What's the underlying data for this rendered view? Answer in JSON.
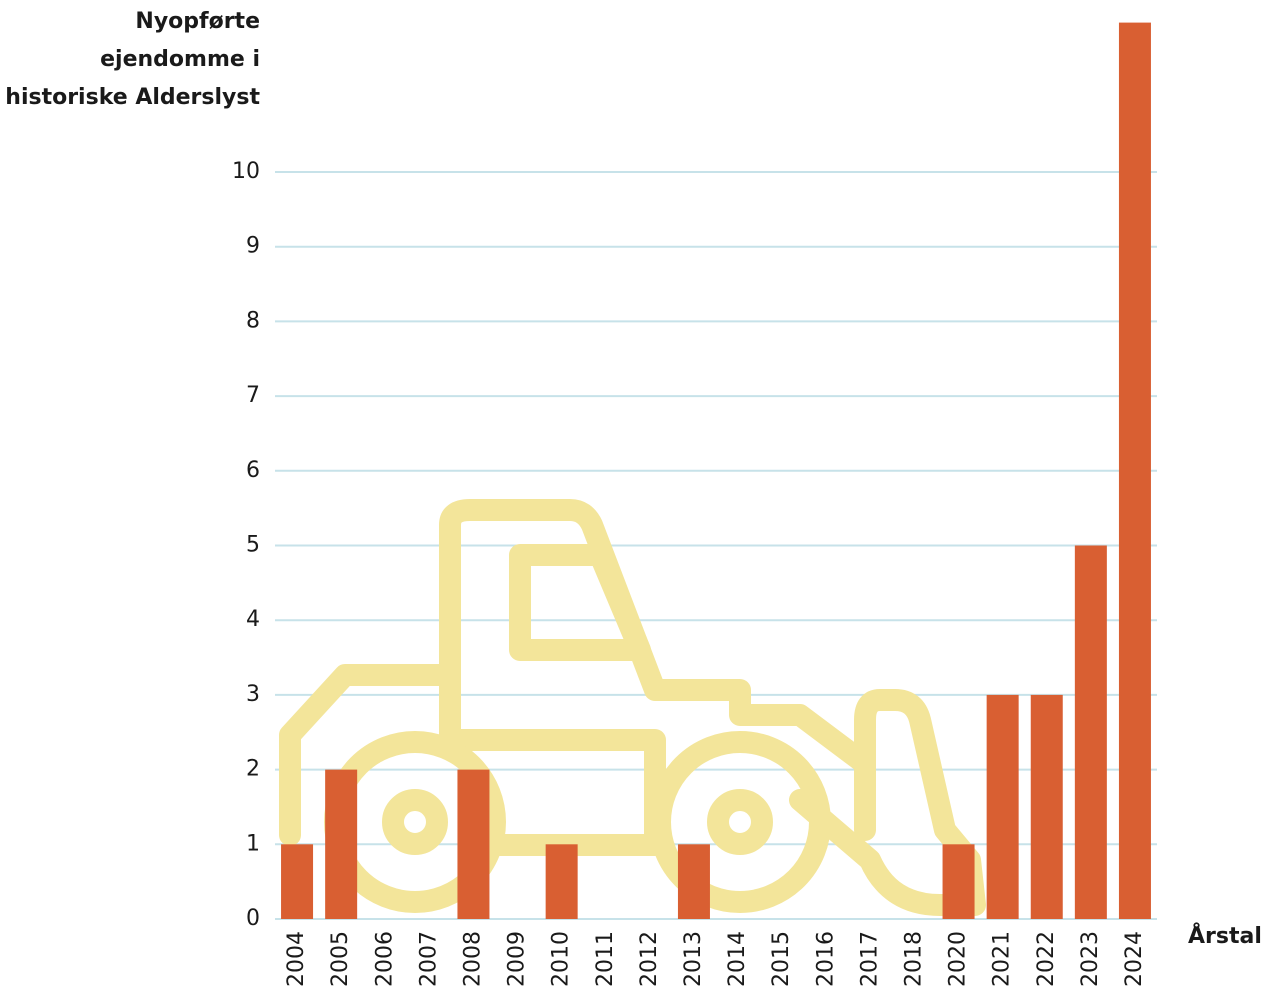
{
  "chart_data": {
    "type": "bar",
    "y_label": [
      "Nyopførte",
      "ejendomme i",
      "historiske Alderslyst"
    ],
    "x_label": "Årstal",
    "categories": [
      "2004",
      "2005",
      "2006",
      "2007",
      "2008",
      "2009",
      "2010",
      "2011",
      "2012",
      "2013",
      "2014",
      "2015",
      "2016",
      "2017",
      "2018",
      "2020",
      "2021",
      "2022",
      "2023",
      "2024"
    ],
    "values": [
      1,
      2,
      0,
      0,
      2,
      0,
      1,
      0,
      0,
      1,
      0,
      0,
      0,
      0,
      0,
      1,
      3,
      3,
      5,
      12
    ],
    "color": "#d95f32",
    "ylim": [
      0,
      12
    ],
    "yticks": [
      0,
      1,
      2,
      3,
      4,
      5,
      6,
      7,
      8,
      9,
      10
    ],
    "grid": true
  }
}
